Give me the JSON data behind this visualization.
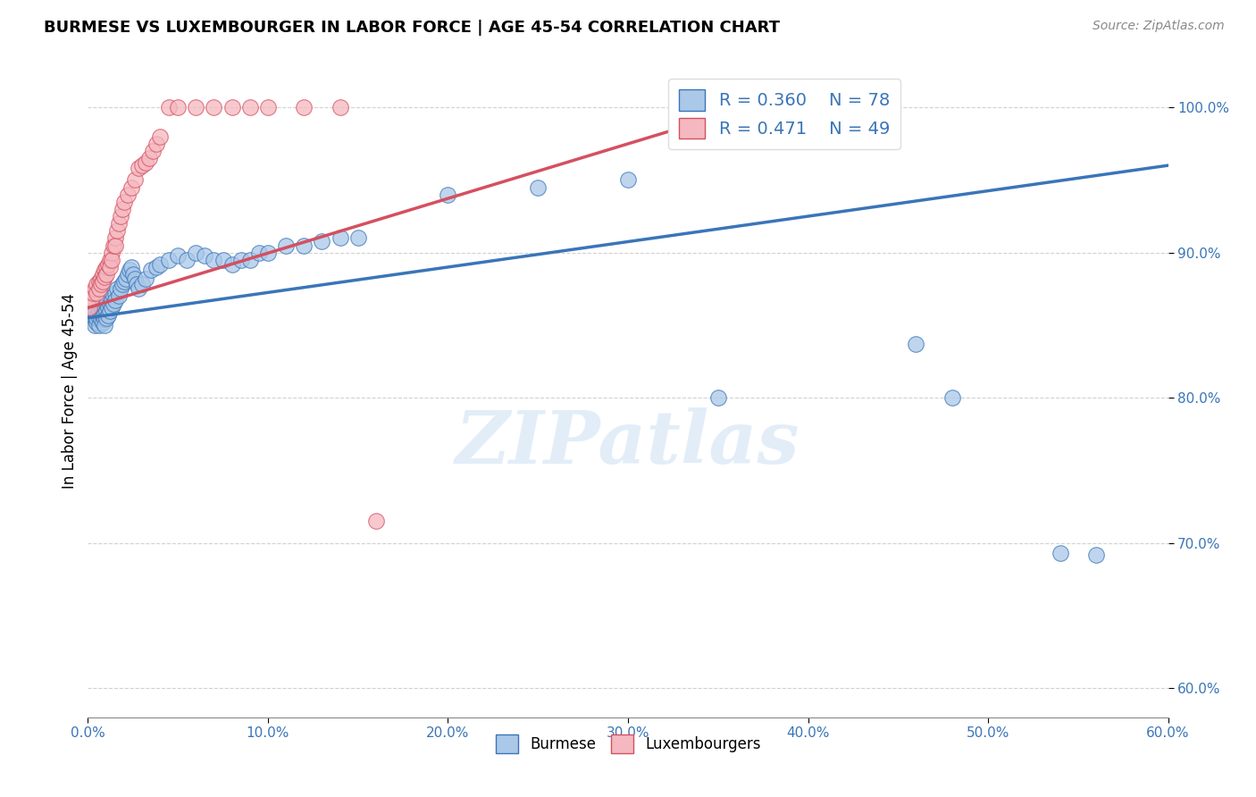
{
  "title": "BURMESE VS LUXEMBOURGER IN LABOR FORCE | AGE 45-54 CORRELATION CHART",
  "source": "Source: ZipAtlas.com",
  "ylabel": "In Labor Force | Age 45-54",
  "x_min": 0.0,
  "x_max": 0.6,
  "y_min": 0.58,
  "y_max": 1.03,
  "x_ticks": [
    0.0,
    0.1,
    0.2,
    0.3,
    0.4,
    0.5,
    0.6
  ],
  "y_ticks": [
    0.6,
    0.7,
    0.8,
    0.9,
    1.0
  ],
  "x_tick_labels": [
    "0.0%",
    "10.0%",
    "20.0%",
    "30.0%",
    "40.0%",
    "50.0%",
    "60.0%"
  ],
  "y_tick_labels": [
    "60.0%",
    "70.0%",
    "80.0%",
    "90.0%",
    "100.0%"
  ],
  "burmese_color": "#aac8e8",
  "luxembourger_color": "#f5b8c0",
  "burmese_R": 0.36,
  "burmese_N": 78,
  "luxembourger_R": 0.471,
  "luxembourger_N": 49,
  "blue_line_color": "#3a75b8",
  "pink_line_color": "#d45060",
  "watermark": "ZIPatlas",
  "blue_line_x0": 0.0,
  "blue_line_y0": 0.855,
  "blue_line_x1": 0.6,
  "blue_line_y1": 0.96,
  "pink_line_x0": 0.0,
  "pink_line_y0": 0.862,
  "pink_line_x1": 0.38,
  "pink_line_y1": 1.005,
  "burmese_x": [
    0.001,
    0.002,
    0.003,
    0.003,
    0.004,
    0.004,
    0.004,
    0.005,
    0.005,
    0.005,
    0.006,
    0.006,
    0.006,
    0.007,
    0.007,
    0.007,
    0.008,
    0.008,
    0.008,
    0.009,
    0.009,
    0.009,
    0.01,
    0.01,
    0.01,
    0.011,
    0.011,
    0.012,
    0.012,
    0.013,
    0.013,
    0.014,
    0.014,
    0.015,
    0.015,
    0.016,
    0.017,
    0.018,
    0.019,
    0.02,
    0.021,
    0.022,
    0.023,
    0.024,
    0.025,
    0.026,
    0.027,
    0.028,
    0.03,
    0.032,
    0.035,
    0.038,
    0.04,
    0.045,
    0.05,
    0.055,
    0.06,
    0.065,
    0.07,
    0.075,
    0.08,
    0.085,
    0.09,
    0.095,
    0.1,
    0.11,
    0.12,
    0.13,
    0.14,
    0.15,
    0.2,
    0.25,
    0.3,
    0.35,
    0.46,
    0.48,
    0.54,
    0.56
  ],
  "burmese_y": [
    0.855,
    0.857,
    0.86,
    0.855,
    0.858,
    0.855,
    0.85,
    0.857,
    0.852,
    0.855,
    0.86,
    0.855,
    0.85,
    0.862,
    0.858,
    0.854,
    0.86,
    0.856,
    0.852,
    0.858,
    0.854,
    0.85,
    0.865,
    0.86,
    0.855,
    0.862,
    0.857,
    0.865,
    0.86,
    0.867,
    0.862,
    0.87,
    0.865,
    0.872,
    0.867,
    0.875,
    0.87,
    0.875,
    0.878,
    0.88,
    0.882,
    0.885,
    0.888,
    0.89,
    0.885,
    0.882,
    0.878,
    0.875,
    0.878,
    0.882,
    0.888,
    0.89,
    0.892,
    0.895,
    0.898,
    0.895,
    0.9,
    0.898,
    0.895,
    0.895,
    0.892,
    0.895,
    0.895,
    0.9,
    0.9,
    0.905,
    0.905,
    0.908,
    0.91,
    0.91,
    0.94,
    0.945,
    0.95,
    0.8,
    0.837,
    0.8,
    0.693,
    0.692
  ],
  "luxembourger_x": [
    0.001,
    0.002,
    0.003,
    0.004,
    0.005,
    0.005,
    0.006,
    0.006,
    0.007,
    0.007,
    0.008,
    0.008,
    0.009,
    0.009,
    0.01,
    0.01,
    0.011,
    0.012,
    0.012,
    0.013,
    0.013,
    0.014,
    0.015,
    0.015,
    0.016,
    0.017,
    0.018,
    0.019,
    0.02,
    0.022,
    0.024,
    0.026,
    0.028,
    0.03,
    0.032,
    0.034,
    0.036,
    0.038,
    0.04,
    0.045,
    0.05,
    0.06,
    0.07,
    0.08,
    0.09,
    0.1,
    0.12,
    0.14,
    0.16
  ],
  "luxembourger_y": [
    0.862,
    0.868,
    0.872,
    0.875,
    0.878,
    0.872,
    0.88,
    0.875,
    0.882,
    0.878,
    0.885,
    0.88,
    0.888,
    0.883,
    0.89,
    0.885,
    0.892,
    0.895,
    0.89,
    0.9,
    0.895,
    0.905,
    0.91,
    0.905,
    0.915,
    0.92,
    0.925,
    0.93,
    0.935,
    0.94,
    0.945,
    0.95,
    0.958,
    0.96,
    0.962,
    0.965,
    0.97,
    0.975,
    0.98,
    1.0,
    1.0,
    1.0,
    1.0,
    1.0,
    1.0,
    1.0,
    1.0,
    1.0,
    0.715
  ]
}
